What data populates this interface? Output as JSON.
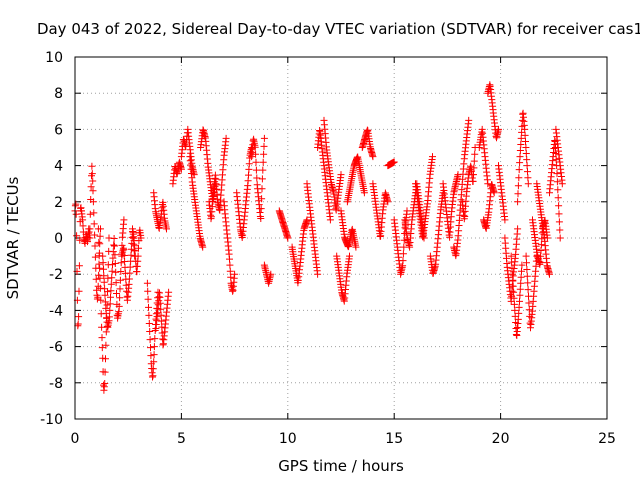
{
  "chart_data": {
    "type": "scatter",
    "title": "Day 043 of 2022, Sidereal Day-to-day VTEC variation (SDTVAR) for receiver cas1",
    "xlabel": "GPS time / hours",
    "ylabel": "SDTVAR / TECUs",
    "xlim": [
      0,
      25
    ],
    "ylim": [
      -10,
      10
    ],
    "xticks": [
      0,
      5,
      10,
      15,
      20,
      25
    ],
    "yticks": [
      -10,
      -8,
      -6,
      -4,
      -2,
      0,
      2,
      4,
      6,
      8,
      10
    ],
    "grid": true,
    "marker": "+",
    "color": "#ff0000",
    "series": [
      {
        "name": "SDTVAR",
        "tracks": [
          {
            "x0": 0.0,
            "x1": 0.3,
            "y": [
              1.5,
              2.0,
              1.0,
              -2.5,
              -5.0,
              -4.5,
              -2.0,
              0.5,
              1.8,
              1.5
            ]
          },
          {
            "x0": 0.3,
            "x1": 0.7,
            "y": [
              1.5,
              1.0,
              0.0,
              -0.3,
              0.2,
              -0.2,
              0.5,
              0.0
            ]
          },
          {
            "x0": 0.7,
            "x1": 1.2,
            "y": [
              0.5,
              2.5,
              4.0,
              3.0,
              1.5,
              0.0,
              -1.5,
              -3.0,
              -3.5,
              -2.0,
              -0.5,
              0.5
            ]
          },
          {
            "x0": 1.1,
            "x1": 1.6,
            "y": [
              0.5,
              -1.5,
              -3.0,
              -5.0,
              -6.5,
              -8.5,
              -8.0,
              -6.0,
              -4.0,
              -2.0,
              0.0
            ]
          },
          {
            "x0": 1.3,
            "x1": 2.3,
            "y": [
              -1.0,
              -2.5,
              -4.0,
              -5.0,
              -4.5,
              -3.0,
              -1.5,
              0.0,
              -2.0,
              -4.5,
              -4.0,
              -2.0,
              0.0,
              1.0
            ]
          },
          {
            "x0": 2.2,
            "x1": 2.8,
            "y": [
              -1.0,
              -0.5,
              -2.0,
              -3.5,
              -2.5,
              -1.0,
              0.5,
              -1.0
            ]
          },
          {
            "x0": 2.7,
            "x1": 3.1,
            "y": [
              0.5,
              0.0,
              -1.0,
              -2.0,
              -1.0,
              0.5,
              0.0
            ]
          },
          {
            "x0": 3.4,
            "x1": 3.9,
            "y": [
              -2.5,
              -4.0,
              -5.5,
              -7.0,
              -7.8,
              -6.5,
              -5.0,
              -4.0,
              -3.0
            ]
          },
          {
            "x0": 3.8,
            "x1": 4.4,
            "y": [
              -5.0,
              -4.0,
              -3.0,
              -4.5,
              -6.0,
              -5.0,
              -4.0,
              -3.0
            ]
          },
          {
            "x0": 3.7,
            "x1": 4.3,
            "y": [
              2.5,
              1.5,
              1.0,
              0.5,
              1.2,
              2.0,
              1.0,
              0.5
            ]
          },
          {
            "x0": 4.6,
            "x1": 5.0,
            "y": [
              3.0,
              4.0,
              3.5,
              4.2,
              3.8
            ]
          },
          {
            "x0": 5.0,
            "x1": 5.6,
            "y": [
              4.5,
              5.5,
              5.0,
              6.0,
              5.0,
              4.0,
              3.5
            ]
          },
          {
            "x0": 5.4,
            "x1": 6.0,
            "y": [
              4.5,
              3.0,
              2.0,
              1.0,
              0.0,
              -0.5
            ]
          },
          {
            "x0": 5.9,
            "x1": 6.6,
            "y": [
              5.0,
              6.0,
              5.5,
              4.0,
              3.0,
              2.0,
              3.0
            ]
          },
          {
            "x0": 6.3,
            "x1": 7.1,
            "y": [
              2.0,
              1.0,
              2.5,
              3.5,
              2.0,
              1.5,
              3.0,
              4.5,
              5.5
            ]
          },
          {
            "x0": 7.0,
            "x1": 7.5,
            "y": [
              2.0,
              1.0,
              0.0,
              -1.0,
              -2.5,
              -3.0,
              -2.0
            ]
          },
          {
            "x0": 7.6,
            "x1": 8.3,
            "y": [
              2.5,
              1.5,
              0.5,
              0.0,
              1.0,
              2.0,
              3.0,
              4.5,
              5.0
            ]
          },
          {
            "x0": 8.3,
            "x1": 8.9,
            "y": [
              4.5,
              5.5,
              5.0,
              3.0,
              2.0,
              1.0,
              3.5,
              5.5
            ]
          },
          {
            "x0": 8.9,
            "x1": 9.2,
            "y": [
              -1.5,
              -2.0,
              -2.5,
              -2.0
            ]
          },
          {
            "x0": 9.6,
            "x1": 10.0,
            "y": [
              1.5,
              1.0,
              0.5,
              0.0
            ]
          },
          {
            "x0": 10.2,
            "x1": 10.9,
            "y": [
              -0.5,
              -1.5,
              -2.5,
              -1.0,
              0.5,
              1.0
            ]
          },
          {
            "x0": 10.9,
            "x1": 11.4,
            "y": [
              3.0,
              2.0,
              1.0,
              0.0,
              -1.0,
              -2.0
            ]
          },
          {
            "x0": 11.4,
            "x1": 12.0,
            "y": [
              5.0,
              6.0,
              5.0,
              4.0,
              3.0,
              2.0,
              1.0
            ]
          },
          {
            "x0": 11.7,
            "x1": 12.5,
            "y": [
              6.5,
              5.0,
              4.0,
              3.0,
              2.5,
              1.5,
              2.5,
              3.5
            ]
          },
          {
            "x0": 12.3,
            "x1": 12.9,
            "y": [
              -1.0,
              -2.0,
              -3.0,
              -3.5,
              -2.0,
              -1.0
            ]
          },
          {
            "x0": 12.5,
            "x1": 13.2,
            "y": [
              1.5,
              0.0,
              -0.5,
              0.5,
              -0.5
            ]
          },
          {
            "x0": 12.8,
            "x1": 13.6,
            "y": [
              2.0,
              3.0,
              4.0,
              4.5,
              3.5,
              2.5
            ]
          },
          {
            "x0": 13.5,
            "x1": 14.0,
            "y": [
              5.0,
              5.5,
              6.0,
              5.0,
              4.5
            ]
          },
          {
            "x0": 14.0,
            "x1": 14.7,
            "y": [
              3.0,
              2.0,
              1.0,
              0.0,
              1.5,
              2.5,
              2.0
            ]
          },
          {
            "x0": 14.7,
            "x1": 15.0,
            "y": [
              4.0,
              4.2
            ]
          },
          {
            "x0": 15.0,
            "x1": 15.6,
            "y": [
              1.0,
              0.0,
              -1.0,
              -2.0,
              -1.5,
              0.5,
              1.5
            ]
          },
          {
            "x0": 15.5,
            "x1": 16.4,
            "y": [
              1.0,
              0.0,
              -0.5,
              1.0,
              2.0,
              3.0,
              2.0,
              1.0,
              0.0
            ]
          },
          {
            "x0": 16.0,
            "x1": 16.8,
            "y": [
              3.0,
              2.0,
              1.0,
              0.0,
              1.0,
              2.0,
              3.5,
              4.5
            ]
          },
          {
            "x0": 16.7,
            "x1": 17.3,
            "y": [
              -1.0,
              -2.0,
              -1.5,
              0.0,
              1.5,
              2.5
            ]
          },
          {
            "x0": 17.3,
            "x1": 18.0,
            "y": [
              3.0,
              2.0,
              1.0,
              0.0,
              1.5,
              2.5,
              3.0,
              3.5
            ]
          },
          {
            "x0": 17.8,
            "x1": 18.5,
            "y": [
              -0.5,
              -1.0,
              0.0,
              1.5,
              3.0,
              4.5,
              5.5,
              6.5
            ]
          },
          {
            "x0": 18.2,
            "x1": 18.8,
            "y": [
              2.0,
              1.0,
              2.5,
              3.5,
              4.0,
              3.0,
              5.0
            ]
          },
          {
            "x0": 19.0,
            "x1": 19.4,
            "y": [
              5.0,
              6.0,
              4.5,
              3.0
            ]
          },
          {
            "x0": 19.2,
            "x1": 19.7,
            "y": [
              1.0,
              0.5,
              1.5,
              3.0,
              2.5
            ]
          },
          {
            "x0": 19.4,
            "x1": 19.9,
            "y": [
              8.0,
              8.5,
              7.5,
              6.5,
              5.5,
              6.0
            ]
          },
          {
            "x0": 19.9,
            "x1": 20.2,
            "y": [
              4.0,
              3.0,
              2.0,
              1.0
            ]
          },
          {
            "x0": 20.2,
            "x1": 20.8,
            "y": [
              0.0,
              -1.5,
              -2.5,
              -3.5,
              -2.0,
              -1.0,
              0.5
            ]
          },
          {
            "x0": 20.5,
            "x1": 21.0,
            "y": [
              -1.0,
              -2.5,
              -4.0,
              -5.5,
              -4.5,
              -3.0,
              -1.5
            ]
          },
          {
            "x0": 20.8,
            "x1": 21.3,
            "y": [
              2.0,
              4.0,
              5.5,
              7.0,
              6.0,
              4.5,
              3.0
            ]
          },
          {
            "x0": 21.2,
            "x1": 21.7,
            "y": [
              -1.0,
              -3.0,
              -5.0,
              -4.0,
              -2.5,
              -1.0
            ]
          },
          {
            "x0": 21.5,
            "x1": 22.2,
            "y": [
              1.0,
              0.0,
              -1.0,
              -1.5,
              0.5,
              1.0,
              0.0
            ]
          },
          {
            "x0": 21.7,
            "x1": 22.3,
            "y": [
              3.0,
              2.0,
              1.0,
              0.0,
              -1.5,
              -2.0
            ]
          },
          {
            "x0": 22.3,
            "x1": 22.8,
            "y": [
              2.5,
              3.5,
              4.5,
              5.5,
              4.0,
              2.0,
              0.0
            ]
          },
          {
            "x0": 22.6,
            "x1": 22.9,
            "y": [
              6.0,
              5.0,
              4.0,
              3.0
            ]
          }
        ]
      }
    ]
  }
}
